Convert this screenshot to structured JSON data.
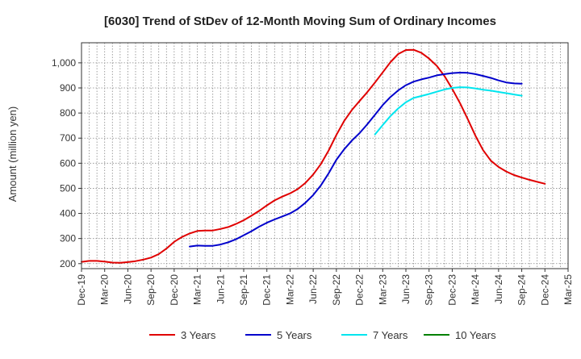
{
  "chart_data": {
    "type": "line",
    "title": "[6030]  Trend of StDev of 12-Month Moving Sum of Ordinary Incomes",
    "xlabel": "",
    "ylabel": "Amount (million yen)",
    "ylim": [
      180,
      1080
    ],
    "yticks": [
      200,
      300,
      400,
      500,
      600,
      700,
      800,
      900,
      1000
    ],
    "ytick_labels": [
      "200",
      "300",
      "400",
      "500",
      "600",
      "700",
      "800",
      "900",
      "1,000"
    ],
    "x_range_months": [
      0,
      63
    ],
    "xticks": [
      {
        "m": 0,
        "label": "Dec-19"
      },
      {
        "m": 3,
        "label": "Mar-20"
      },
      {
        "m": 6,
        "label": "Jun-20"
      },
      {
        "m": 9,
        "label": "Sep-20"
      },
      {
        "m": 12,
        "label": "Dec-20"
      },
      {
        "m": 15,
        "label": "Mar-21"
      },
      {
        "m": 18,
        "label": "Jun-21"
      },
      {
        "m": 21,
        "label": "Sep-21"
      },
      {
        "m": 24,
        "label": "Dec-21"
      },
      {
        "m": 27,
        "label": "Mar-22"
      },
      {
        "m": 30,
        "label": "Jun-22"
      },
      {
        "m": 33,
        "label": "Sep-22"
      },
      {
        "m": 36,
        "label": "Dec-22"
      },
      {
        "m": 39,
        "label": "Mar-23"
      },
      {
        "m": 42,
        "label": "Jun-23"
      },
      {
        "m": 45,
        "label": "Sep-23"
      },
      {
        "m": 48,
        "label": "Dec-23"
      },
      {
        "m": 51,
        "label": "Mar-24"
      },
      {
        "m": 54,
        "label": "Jun-24"
      },
      {
        "m": 57,
        "label": "Sep-24"
      },
      {
        "m": 60,
        "label": "Dec-24"
      },
      {
        "m": 63,
        "label": "Mar-25"
      }
    ],
    "grid": true,
    "legend_position": "bottom",
    "series": [
      {
        "name": "3 Years",
        "color": "#e00000",
        "start_month": 0,
        "values": [
          207,
          211,
          211,
          208,
          204,
          203,
          206,
          210,
          216,
          224,
          238,
          260,
          287,
          306,
          320,
          330,
          332,
          332,
          338,
          346,
          358,
          373,
          391,
          410,
          432,
          452,
          467,
          480,
          497,
          522,
          555,
          597,
          651,
          713,
          768,
          812,
          848,
          883,
          922,
          962,
          1003,
          1035,
          1051,
          1052,
          1040,
          1017,
          988,
          947,
          896,
          840,
          776,
          710,
          652,
          610,
          585,
          567,
          553,
          543,
          534,
          526,
          518
        ]
      },
      {
        "name": "5 Years",
        "color": "#0000cc",
        "start_month": 14,
        "values": [
          268,
          272,
          271,
          271,
          276,
          285,
          297,
          313,
          329,
          347,
          363,
          376,
          388,
          400,
          418,
          443,
          473,
          512,
          560,
          614,
          655,
          690,
          720,
          755,
          793,
          832,
          864,
          890,
          911,
          925,
          934,
          941,
          950,
          955,
          959,
          961,
          960,
          955,
          948,
          940,
          930,
          922,
          918,
          917
        ]
      },
      {
        "name": "7 Years",
        "color": "#00e5ee",
        "start_month": 38,
        "values": [
          715,
          752,
          788,
          818,
          843,
          860,
          868,
          876,
          885,
          894,
          900,
          903,
          902,
          898,
          893,
          889,
          884,
          879,
          874,
          869
        ]
      },
      {
        "name": "10 Years",
        "color": "#008000",
        "start_month": null,
        "values": []
      }
    ]
  }
}
